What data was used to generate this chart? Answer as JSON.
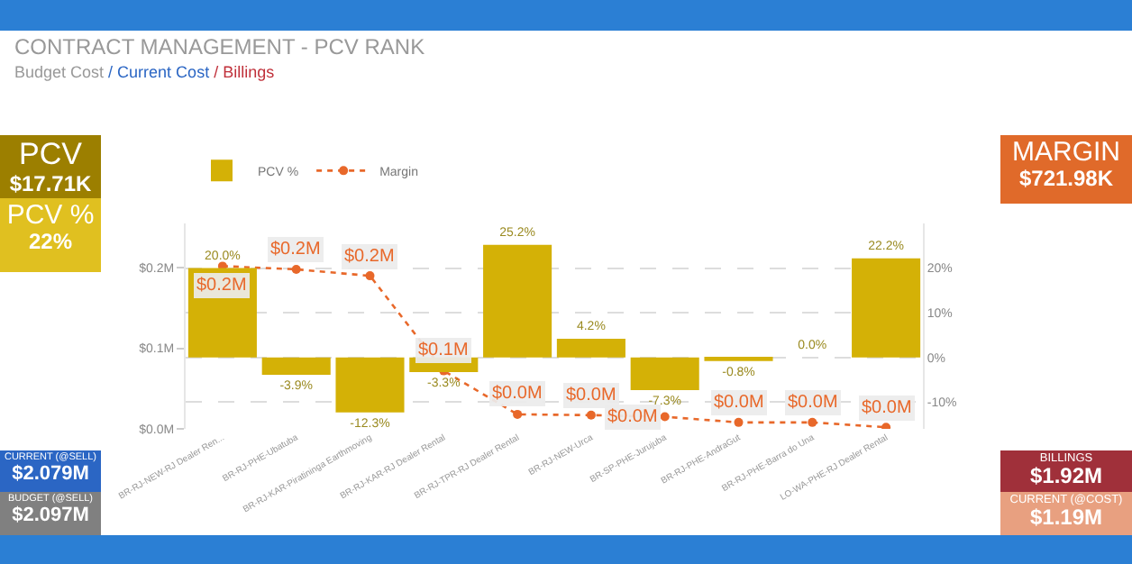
{
  "chart_data": [
    {
      "type": "bar",
      "title": "CONTRACT MANAGEMENT - PCV RANK",
      "subtitle": "Budget Cost / Current Cost / Billings",
      "categories": [
        "BR-RJ-NEW-RJ Dealer Ren...",
        "BR-RJ-PHE-Ubatuba",
        "BR-RJ-KAR-Piratininga Earthmoving",
        "BR-RJ-KAR-RJ Dealer Rental",
        "BR-RJ-TPR-RJ Dealer Rental",
        "BR-RJ-NEW-Urca",
        "BR-SP-PHE-Jurujuba",
        "BR-RJ-PHE-AndraGut",
        "BR-RJ-PHE-Barra do Una",
        "LO-WA-PHE-RJ Dealer Rental"
      ],
      "series": [
        {
          "name": "PCV %",
          "type": "bar",
          "axis": "y2",
          "color": "#d4b106",
          "values": [
            20.0,
            -3.9,
            -12.3,
            -3.3,
            25.2,
            4.2,
            -7.3,
            -0.8,
            0.0,
            22.2
          ],
          "value_labels": [
            "20.0%",
            "-3.9%",
            "-12.3%",
            "-3.3%",
            "25.2%",
            "4.2%",
            "-7.3%",
            "-0.8%",
            "0.0%",
            "22.2%"
          ]
        },
        {
          "name": "Margin",
          "type": "line",
          "axis": "y",
          "color": "#e8682a",
          "marker": "circle",
          "line_style": "dotted",
          "values": [
            0.202,
            0.198,
            0.19,
            0.072,
            0.018,
            0.017,
            0.015,
            0.008,
            0.008,
            0.002
          ],
          "value_labels": [
            "$0.2M",
            "$0.2M",
            "$0.2M",
            "$0.1M",
            "$0.0M",
            "$0.0M",
            "$0.0M",
            "$0.0M",
            "$0.0M",
            "$0.0M"
          ]
        }
      ],
      "ylim": [
        0,
        0.255
      ],
      "yticks": [
        {
          "value": 0,
          "label": "$0.0M"
        },
        {
          "value": 0.1,
          "label": "$0.1M"
        },
        {
          "value": 0.2,
          "label": "$0.2M"
        }
      ],
      "y2lim": [
        -16,
        30
      ],
      "y2ticks": [
        {
          "value": -10,
          "label": "-10%"
        },
        {
          "value": 0,
          "label": "0%"
        },
        {
          "value": 10,
          "label": "10%"
        },
        {
          "value": 20,
          "label": "20%"
        }
      ],
      "grid": "y2",
      "legend": "top left"
    },
    {
      "type": "other",
      "annotations": [
        "PCV",
        "$17.71K",
        "PCV %",
        "22%",
        "CURRENT (@SELL)",
        "$2.079M",
        "BUDGET (@SELL)",
        "$2.097M",
        "MARGIN",
        "$721.98K",
        "BILLINGS",
        "$1.92M",
        "CURRENT (@COST)",
        "$1.19M"
      ]
    }
  ]
}
